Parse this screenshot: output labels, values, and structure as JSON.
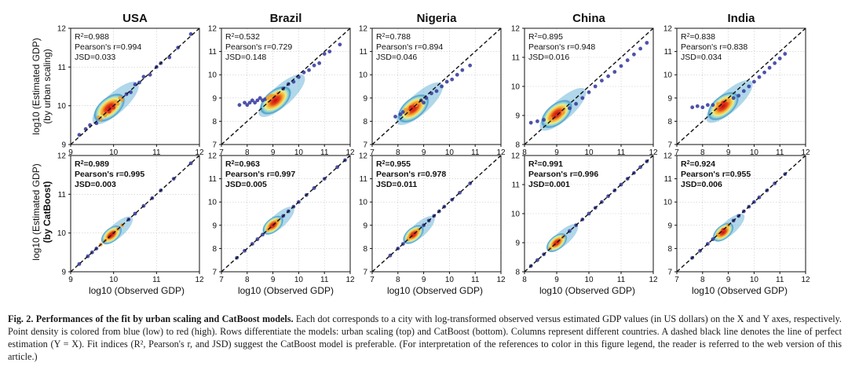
{
  "figure": {
    "x_axis_label": "log10 (Observed GDP)",
    "row_labels": [
      {
        "line1": "log10 (Estimated GDP)",
        "line2": "(by urban scaling)"
      },
      {
        "line1": "log10 (Estimated GDP)",
        "line2": "(by CatBoost)"
      }
    ]
  },
  "chart_data": [
    {
      "type": "scatter",
      "country": "USA",
      "model": "urban scaling",
      "title": "USA",
      "xlim": [
        9,
        12
      ],
      "ylim": [
        9,
        12
      ],
      "xticks": [
        9,
        10,
        11,
        12
      ],
      "yticks": [
        9,
        10,
        11,
        12
      ],
      "hotspot": [
        9.9,
        9.95
      ],
      "stats": {
        "r2": "0.988",
        "pearson": "0.994",
        "jsd": "0.033"
      },
      "points": [
        [
          9.2,
          9.25
        ],
        [
          9.35,
          9.4
        ],
        [
          9.45,
          9.5
        ],
        [
          9.6,
          9.55
        ],
        [
          9.65,
          9.7
        ],
        [
          9.7,
          9.65
        ],
        [
          9.75,
          9.8
        ],
        [
          9.8,
          9.75
        ],
        [
          9.85,
          9.9
        ],
        [
          9.9,
          9.85
        ],
        [
          9.95,
          10.0
        ],
        [
          10.0,
          9.95
        ],
        [
          10.05,
          10.1
        ],
        [
          10.1,
          10.05
        ],
        [
          10.15,
          10.2
        ],
        [
          10.2,
          10.15
        ],
        [
          10.3,
          10.3
        ],
        [
          10.4,
          10.35
        ],
        [
          10.5,
          10.55
        ],
        [
          10.6,
          10.6
        ],
        [
          10.7,
          10.75
        ],
        [
          10.85,
          10.8
        ],
        [
          11.0,
          11.0
        ],
        [
          11.1,
          11.1
        ],
        [
          11.3,
          11.25
        ],
        [
          11.5,
          11.5
        ],
        [
          11.8,
          11.85
        ]
      ]
    },
    {
      "type": "scatter",
      "country": "Brazil",
      "model": "urban scaling",
      "title": "Brazil",
      "xlim": [
        7,
        12
      ],
      "ylim": [
        7,
        12
      ],
      "xticks": [
        7,
        8,
        9,
        10,
        11,
        12
      ],
      "yticks": [
        7,
        8,
        9,
        10,
        11,
        12
      ],
      "hotspot": [
        9.1,
        8.9
      ],
      "stats": {
        "r2": "0.532",
        "pearson": "0.729",
        "jsd": "0.148"
      },
      "points": [
        [
          7.7,
          8.7
        ],
        [
          7.9,
          8.8
        ],
        [
          8.0,
          8.7
        ],
        [
          8.1,
          8.8
        ],
        [
          8.2,
          8.9
        ],
        [
          8.3,
          8.8
        ],
        [
          8.4,
          8.9
        ],
        [
          8.5,
          9.0
        ],
        [
          8.6,
          8.9
        ],
        [
          8.7,
          8.95
        ],
        [
          8.8,
          9.0
        ],
        [
          8.9,
          9.1
        ],
        [
          9.0,
          9.1
        ],
        [
          9.2,
          9.2
        ],
        [
          9.4,
          9.4
        ],
        [
          9.6,
          9.6
        ],
        [
          9.8,
          9.7
        ],
        [
          10.0,
          9.9
        ],
        [
          10.2,
          10.1
        ],
        [
          10.4,
          10.2
        ],
        [
          10.6,
          10.4
        ],
        [
          10.8,
          10.5
        ],
        [
          11.0,
          10.9
        ],
        [
          11.2,
          11.0
        ],
        [
          11.6,
          11.3
        ]
      ]
    },
    {
      "type": "scatter",
      "country": "Nigeria",
      "model": "urban scaling",
      "title": "Nigeria",
      "xlim": [
        7,
        12
      ],
      "ylim": [
        7,
        12
      ],
      "xticks": [
        7,
        8,
        9,
        10,
        11,
        12
      ],
      "yticks": [
        7,
        8,
        9,
        10,
        11,
        12
      ],
      "hotspot": [
        8.6,
        8.55
      ],
      "stats": {
        "r2": "0.788",
        "pearson": "0.894",
        "jsd": "0.046"
      },
      "points": [
        [
          7.9,
          8.2
        ],
        [
          8.1,
          8.3
        ],
        [
          8.2,
          8.4
        ],
        [
          8.3,
          8.5
        ],
        [
          8.4,
          8.4
        ],
        [
          8.5,
          8.6
        ],
        [
          8.6,
          8.5
        ],
        [
          8.7,
          8.7
        ],
        [
          8.8,
          8.8
        ],
        [
          8.9,
          8.9
        ],
        [
          9.0,
          8.8
        ],
        [
          9.1,
          9.0
        ],
        [
          9.3,
          9.2
        ],
        [
          9.5,
          9.3
        ],
        [
          9.7,
          9.5
        ],
        [
          9.9,
          9.7
        ],
        [
          10.1,
          9.8
        ],
        [
          10.3,
          10.0
        ],
        [
          10.5,
          10.2
        ],
        [
          10.8,
          10.4
        ]
      ]
    },
    {
      "type": "scatter",
      "country": "China",
      "model": "urban scaling",
      "title": "China",
      "xlim": [
        8,
        12
      ],
      "ylim": [
        8,
        12
      ],
      "xticks": [
        8,
        9,
        10,
        11,
        12
      ],
      "yticks": [
        8,
        9,
        10,
        11,
        12
      ],
      "hotspot": [
        9.0,
        9.05
      ],
      "stats": {
        "r2": "0.895",
        "pearson": "0.948",
        "jsd": "0.016"
      },
      "points": [
        [
          8.2,
          8.75
        ],
        [
          8.4,
          8.8
        ],
        [
          8.6,
          8.85
        ],
        [
          8.8,
          8.9
        ],
        [
          9.0,
          9.0
        ],
        [
          9.2,
          9.1
        ],
        [
          9.4,
          9.25
        ],
        [
          9.6,
          9.4
        ],
        [
          9.8,
          9.6
        ],
        [
          10.0,
          9.8
        ],
        [
          10.2,
          10.0
        ],
        [
          10.4,
          10.2
        ],
        [
          10.6,
          10.35
        ],
        [
          10.8,
          10.5
        ],
        [
          11.0,
          10.7
        ],
        [
          11.2,
          10.9
        ],
        [
          11.4,
          11.1
        ],
        [
          11.6,
          11.3
        ],
        [
          11.8,
          11.5
        ]
      ]
    },
    {
      "type": "scatter",
      "country": "India",
      "model": "urban scaling",
      "title": "India",
      "xlim": [
        7,
        12
      ],
      "ylim": [
        7,
        12
      ],
      "xticks": [
        7,
        8,
        9,
        10,
        11,
        12
      ],
      "yticks": [
        7,
        8,
        9,
        10,
        11,
        12
      ],
      "hotspot": [
        8.8,
        8.65
      ],
      "stats": {
        "r2": "0.838",
        "pearson": "0.838",
        "jsd": "0.034"
      },
      "points": [
        [
          7.6,
          8.6
        ],
        [
          7.8,
          8.65
        ],
        [
          8.0,
          8.6
        ],
        [
          8.2,
          8.7
        ],
        [
          8.4,
          8.7
        ],
        [
          8.6,
          8.75
        ],
        [
          8.8,
          8.8
        ],
        [
          9.0,
          8.9
        ],
        [
          9.2,
          9.0
        ],
        [
          9.4,
          9.1
        ],
        [
          9.6,
          9.3
        ],
        [
          9.8,
          9.5
        ],
        [
          10.0,
          9.7
        ],
        [
          10.2,
          9.9
        ],
        [
          10.4,
          10.1
        ],
        [
          10.6,
          10.3
        ],
        [
          10.8,
          10.5
        ],
        [
          11.0,
          10.7
        ],
        [
          11.2,
          10.9
        ]
      ]
    },
    {
      "type": "scatter",
      "country": "USA",
      "model": "CatBoost",
      "title": "USA",
      "xlim": [
        9,
        12
      ],
      "ylim": [
        9,
        12
      ],
      "xticks": [
        9,
        10,
        11,
        12
      ],
      "yticks": [
        9,
        10,
        11,
        12
      ],
      "hotspot": [
        9.95,
        9.95
      ],
      "stats": {
        "r2": "0.989",
        "pearson": "0.995",
        "jsd": "0.003"
      },
      "points": [
        [
          9.2,
          9.2
        ],
        [
          9.4,
          9.4
        ],
        [
          9.5,
          9.5
        ],
        [
          9.6,
          9.6
        ],
        [
          9.7,
          9.7
        ],
        [
          9.8,
          9.8
        ],
        [
          9.9,
          9.9
        ],
        [
          10.0,
          10.0
        ],
        [
          10.1,
          10.1
        ],
        [
          10.2,
          10.2
        ],
        [
          10.35,
          10.35
        ],
        [
          10.5,
          10.5
        ],
        [
          10.7,
          10.7
        ],
        [
          10.9,
          10.9
        ],
        [
          11.1,
          11.1
        ],
        [
          11.4,
          11.4
        ],
        [
          11.8,
          11.8
        ]
      ]
    },
    {
      "type": "scatter",
      "country": "Brazil",
      "model": "CatBoost",
      "title": "Brazil",
      "xlim": [
        7,
        12
      ],
      "ylim": [
        7,
        12
      ],
      "xticks": [
        7,
        8,
        9,
        10,
        11,
        12
      ],
      "yticks": [
        7,
        8,
        9,
        10,
        11,
        12
      ],
      "hotspot": [
        9.0,
        9.0
      ],
      "stats": {
        "r2": "0.963",
        "pearson": "0.997",
        "jsd": "0.005"
      },
      "points": [
        [
          7.6,
          7.6
        ],
        [
          7.9,
          7.9
        ],
        [
          8.2,
          8.2
        ],
        [
          8.4,
          8.4
        ],
        [
          8.6,
          8.6
        ],
        [
          8.8,
          8.8
        ],
        [
          9.0,
          9.0
        ],
        [
          9.2,
          9.2
        ],
        [
          9.4,
          9.4
        ],
        [
          9.6,
          9.6
        ],
        [
          9.8,
          9.8
        ],
        [
          10.0,
          10.0
        ],
        [
          10.3,
          10.3
        ],
        [
          10.6,
          10.6
        ],
        [
          11.0,
          11.0
        ],
        [
          11.5,
          11.5
        ],
        [
          11.8,
          11.8
        ]
      ]
    },
    {
      "type": "scatter",
      "country": "Nigeria",
      "model": "CatBoost",
      "title": "Nigeria",
      "xlim": [
        7,
        12
      ],
      "ylim": [
        7,
        12
      ],
      "xticks": [
        7,
        8,
        9,
        10,
        11,
        12
      ],
      "yticks": [
        7,
        8,
        9,
        10,
        11,
        12
      ],
      "hotspot": [
        8.6,
        8.6
      ],
      "stats": {
        "r2": "0.955",
        "pearson": "0.978",
        "jsd": "0.011"
      },
      "points": [
        [
          7.7,
          7.7
        ],
        [
          8.0,
          8.0
        ],
        [
          8.2,
          8.2
        ],
        [
          8.4,
          8.4
        ],
        [
          8.6,
          8.6
        ],
        [
          8.8,
          8.8
        ],
        [
          9.0,
          9.0
        ],
        [
          9.2,
          9.2
        ],
        [
          9.4,
          9.4
        ],
        [
          9.6,
          9.6
        ],
        [
          9.8,
          9.8
        ],
        [
          10.1,
          10.1
        ],
        [
          10.4,
          10.4
        ],
        [
          10.8,
          10.8
        ]
      ]
    },
    {
      "type": "scatter",
      "country": "China",
      "model": "CatBoost",
      "title": "China",
      "xlim": [
        8,
        12
      ],
      "ylim": [
        8,
        12
      ],
      "xticks": [
        8,
        9,
        10,
        11,
        12
      ],
      "yticks": [
        8,
        9,
        10,
        11,
        12
      ],
      "hotspot": [
        9.0,
        9.0
      ],
      "stats": {
        "r2": "0.991",
        "pearson": "0.996",
        "jsd": "0.001"
      },
      "points": [
        [
          8.2,
          8.2
        ],
        [
          8.4,
          8.4
        ],
        [
          8.6,
          8.6
        ],
        [
          8.8,
          8.8
        ],
        [
          9.0,
          9.0
        ],
        [
          9.2,
          9.2
        ],
        [
          9.4,
          9.4
        ],
        [
          9.6,
          9.6
        ],
        [
          9.8,
          9.8
        ],
        [
          10.0,
          10.0
        ],
        [
          10.2,
          10.2
        ],
        [
          10.4,
          10.4
        ],
        [
          10.6,
          10.6
        ],
        [
          10.8,
          10.8
        ],
        [
          11.0,
          11.0
        ],
        [
          11.2,
          11.2
        ],
        [
          11.4,
          11.4
        ],
        [
          11.6,
          11.6
        ],
        [
          11.8,
          11.8
        ]
      ]
    },
    {
      "type": "scatter",
      "country": "India",
      "model": "CatBoost",
      "title": "India",
      "xlim": [
        7,
        12
      ],
      "ylim": [
        7,
        12
      ],
      "xticks": [
        7,
        8,
        9,
        10,
        11,
        12
      ],
      "yticks": [
        7,
        8,
        9,
        10,
        11,
        12
      ],
      "hotspot": [
        8.8,
        8.7
      ],
      "stats": {
        "r2": "0.924",
        "pearson": "0.955",
        "jsd": "0.006"
      },
      "points": [
        [
          7.6,
          7.6
        ],
        [
          7.9,
          7.9
        ],
        [
          8.2,
          8.2
        ],
        [
          8.4,
          8.4
        ],
        [
          8.6,
          8.6
        ],
        [
          8.8,
          8.8
        ],
        [
          9.0,
          9.0
        ],
        [
          9.2,
          9.2
        ],
        [
          9.4,
          9.4
        ],
        [
          9.6,
          9.6
        ],
        [
          9.8,
          9.8
        ],
        [
          10.0,
          10.0
        ],
        [
          10.2,
          10.2
        ],
        [
          10.5,
          10.5
        ],
        [
          10.8,
          10.8
        ],
        [
          11.2,
          11.2
        ]
      ]
    }
  ],
  "caption": {
    "fig": "Fig. 2.",
    "lead": "Performances of the fit by urban scaling and CatBoost models.",
    "body": "Each dot corresponds to a city with log-transformed observed versus estimated GDP values (in US dollars) on the X and Y axes, respectively. Point density is colored from blue (low) to red (high). Rows differentiate the models: urban scaling (top) and CatBoost (bottom). Columns represent different countries. A dashed black line denotes the line of perfect estimation (Y = X). Fit indices (R², Pearson's r, and JSD) suggest the CatBoost model is preferable. (For interpretation of the references to color in this figure legend, the reader is referred to the web version of this article.)"
  }
}
